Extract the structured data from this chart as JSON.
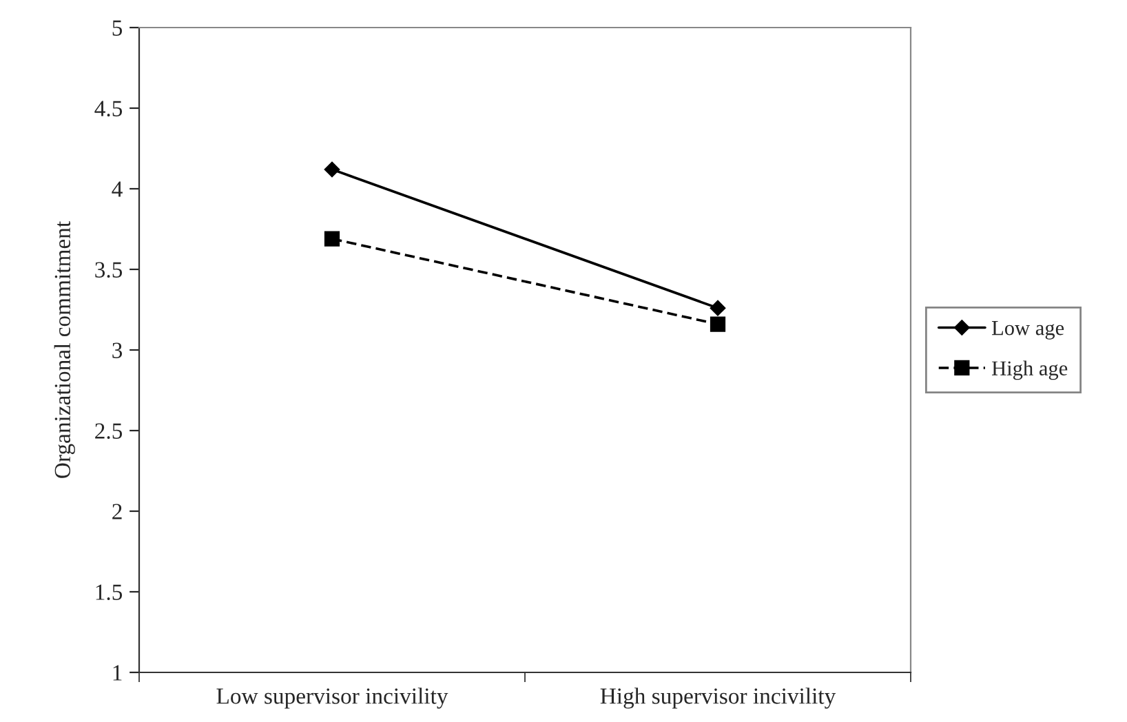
{
  "chart_data": {
    "type": "line",
    "ylabel": "Organizational commitment",
    "categories": [
      "Low supervisor incivility",
      "High supervisor incivility"
    ],
    "series": [
      {
        "name": "Low age",
        "color": "#000000",
        "values": [
          4.12,
          3.26
        ],
        "marker": "diamond",
        "line_style": "solid"
      },
      {
        "name": "High age",
        "color": "#000000",
        "values": [
          3.69,
          3.16
        ],
        "marker": "square",
        "line_style": "dashed"
      }
    ],
    "ylim": [
      1,
      5
    ],
    "yticks": [
      1,
      1.5,
      2,
      2.5,
      3,
      3.5,
      4,
      4.5,
      5
    ],
    "grid": false,
    "legend": "right"
  }
}
